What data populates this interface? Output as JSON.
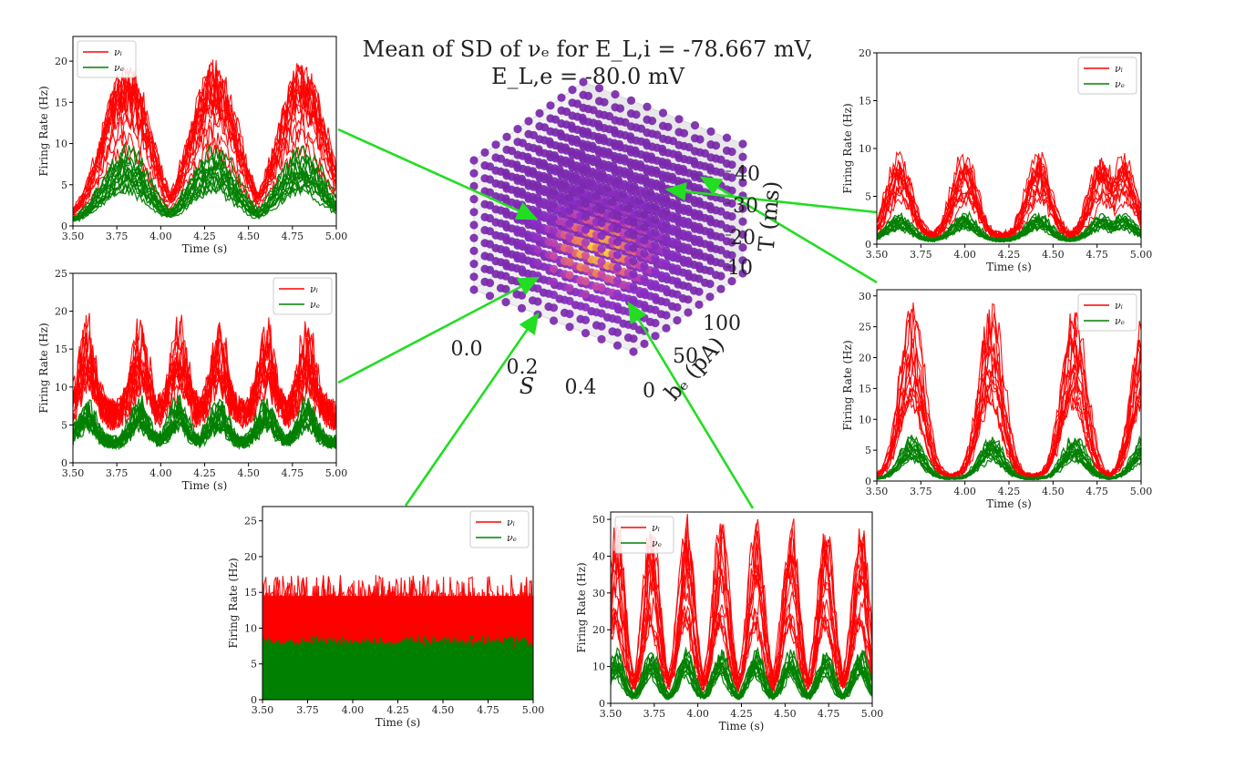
{
  "figure": {
    "title_line1": "Mean of SD of νₑ for E_L,i = -78.667 mV,",
    "title_line2": "E_L,e = -80.0 mV"
  },
  "cube": {
    "axis_s_label": "S",
    "axis_b_label": "bₑ (pA)",
    "axis_t_label": "T (ms)",
    "s_ticks": [
      "0.0",
      "0.2",
      "0.4"
    ],
    "b_ticks": [
      "0",
      "50",
      "100"
    ],
    "t_ticks": [
      "10",
      "20",
      "30",
      "40"
    ]
  },
  "chart_data": [
    {
      "id": "top-left",
      "type": "line",
      "xlabel": "Time (s)",
      "ylabel": "Firing Rate (Hz)",
      "xlim": [
        3.5,
        5.0
      ],
      "ylim": [
        0,
        23
      ],
      "xticks": [
        "3.50",
        "3.75",
        "4.00",
        "4.25",
        "4.50",
        "4.75",
        "5.00"
      ],
      "yticks": [
        0,
        5,
        10,
        15,
        20
      ],
      "pattern": "bursts",
      "burst_centers": [
        3.8,
        4.3,
        4.8
      ],
      "burst_width": 0.28,
      "series": [
        {
          "name": "νᵢ",
          "color": "#ff0000",
          "peak_max": 19,
          "base": 0.5
        },
        {
          "name": "νₑ",
          "color": "#008000",
          "peak_max": 9,
          "base": 0.3
        }
      ],
      "legend": "top-left"
    },
    {
      "id": "middle-left",
      "type": "line",
      "xlabel": "Time (s)",
      "ylabel": "Firing Rate (Hz)",
      "xlim": [
        3.5,
        5.0
      ],
      "ylim": [
        0,
        25
      ],
      "xticks": [
        "3.50",
        "3.75",
        "4.00",
        "4.25",
        "4.50",
        "4.75",
        "5.00"
      ],
      "yticks": [
        0,
        5,
        10,
        15,
        20,
        25
      ],
      "pattern": "noisy-bursts",
      "burst_centers": [
        3.58,
        3.88,
        4.1,
        4.33,
        4.6,
        4.83
      ],
      "burst_width": 0.1,
      "series": [
        {
          "name": "νᵢ",
          "color": "#ff0000",
          "peak_max": 20,
          "base": 7
        },
        {
          "name": "νₑ",
          "color": "#008000",
          "peak_max": 9,
          "base": 3
        }
      ],
      "legend": "top-right"
    },
    {
      "id": "bottom-center-left",
      "type": "line",
      "xlabel": "Time (s)",
      "ylabel": "Firing Rate (Hz)",
      "xlim": [
        3.5,
        5.0
      ],
      "ylim": [
        0,
        27
      ],
      "xticks": [
        "3.50",
        "3.75",
        "4.00",
        "4.25",
        "4.50",
        "4.75",
        "5.00"
      ],
      "yticks": [
        0,
        5,
        10,
        15,
        20,
        25
      ],
      "pattern": "noise",
      "series": [
        {
          "name": "νᵢ",
          "color": "#ff0000",
          "peak_max": 20,
          "base": 11.5
        },
        {
          "name": "νₑ",
          "color": "#008000",
          "peak_max": 10,
          "base": 7
        }
      ],
      "legend": "top-right"
    },
    {
      "id": "bottom-center-right",
      "type": "line",
      "xlabel": "Time (s)",
      "ylabel": "Firing Rate (Hz)",
      "xlim": [
        3.5,
        5.0
      ],
      "ylim": [
        0,
        52
      ],
      "xticks": [
        "3.50",
        "3.75",
        "4.00",
        "4.25",
        "4.50",
        "4.75",
        "5.00"
      ],
      "yticks": [
        0,
        10,
        20,
        30,
        40,
        50
      ],
      "pattern": "oscillation",
      "burst_centers": [
        3.53,
        3.73,
        3.93,
        4.13,
        4.33,
        4.53,
        4.73,
        4.93
      ],
      "burst_width": 0.09,
      "series": [
        {
          "name": "νᵢ",
          "color": "#ff0000",
          "peak_max": 45,
          "base": 3
        },
        {
          "name": "νₑ",
          "color": "#008000",
          "peak_max": 14,
          "base": 1
        }
      ],
      "legend": "top-left"
    },
    {
      "id": "top-right",
      "type": "line",
      "xlabel": "Time (s)",
      "ylabel": "Firing Rate (Hz)",
      "xlim": [
        3.5,
        5.0
      ],
      "ylim": [
        0,
        20
      ],
      "xticks": [
        "3.50",
        "3.75",
        "4.00",
        "4.25",
        "4.50",
        "4.75",
        "5.00"
      ],
      "yticks": [
        0,
        5,
        10,
        15,
        20
      ],
      "pattern": "bursts",
      "burst_centers": [
        3.63,
        4.0,
        4.42,
        4.78,
        4.9
      ],
      "burst_width": 0.14,
      "series": [
        {
          "name": "νᵢ",
          "color": "#ff0000",
          "peak_max": 9,
          "base": 0.8
        },
        {
          "name": "νₑ",
          "color": "#008000",
          "peak_max": 3,
          "base": 0.4
        }
      ],
      "legend": "top-right"
    },
    {
      "id": "middle-right",
      "type": "line",
      "xlabel": "Time (s)",
      "ylabel": "Firing Rate (Hz)",
      "xlim": [
        3.5,
        5.0
      ],
      "ylim": [
        0,
        31
      ],
      "xticks": [
        "3.50",
        "3.75",
        "4.00",
        "4.25",
        "4.50",
        "4.75",
        "5.00"
      ],
      "yticks": [
        0,
        5,
        10,
        15,
        20,
        25,
        30
      ],
      "pattern": "bursts",
      "burst_centers": [
        3.7,
        4.15,
        4.62,
        5.02
      ],
      "burst_width": 0.14,
      "series": [
        {
          "name": "νᵢ",
          "color": "#ff0000",
          "peak_max": 26,
          "base": 0.8
        },
        {
          "name": "νₑ",
          "color": "#008000",
          "peak_max": 7,
          "base": 0.4
        }
      ],
      "legend": "top-right"
    }
  ]
}
